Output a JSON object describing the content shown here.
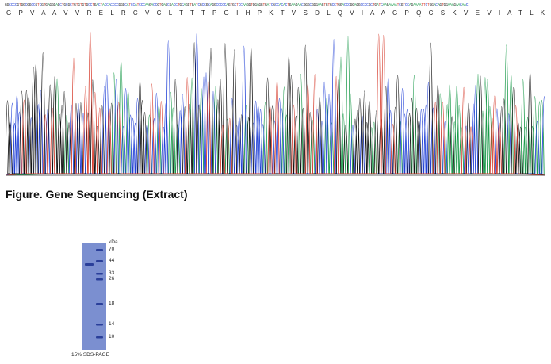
{
  "figure_caption": "Figure. Gene Sequencing (Extract)",
  "protein_sequence": "G P V A A V V R E L R C V C L T T T P G I H P K T V S D L Q V I A A G P Q C S K V E V I A T L K N G R E V C L D P E A P L I K K I V Q K I L D S G K N N",
  "dna_sequence": "GGCCCCGTGGCGGCCGTCGTGAGGGAGCTGCGCTGTGTGTGCCTGACTACCACCCCGGGCATCCATCCCAAGACCGTGAGCGACCTGCAGGTGATCGCCGCAGGCCCCCAGTGCTCCAAGGTGGAGGTGATCGCCACACTGAAGAACGGGCGGGAAGTGTGCCTGGACCCGGAGGCCCCGCTGATCAAGAAAATCGTCCAGAAAATTCTGGACAGTGGAAAGAACAAC",
  "gel": {
    "unit_label": "kDa",
    "markers": [
      "70",
      "44",
      "33",
      "26",
      "18",
      "14",
      "10"
    ],
    "caption": "15% SDS-PAGE"
  },
  "colors": {
    "A": "#1a9a4a",
    "C": "#1f3fd6",
    "G": "#111111",
    "T": "#d63a2a",
    "gel_background": "#7b8fd0",
    "band": "#2a3f9a"
  }
}
